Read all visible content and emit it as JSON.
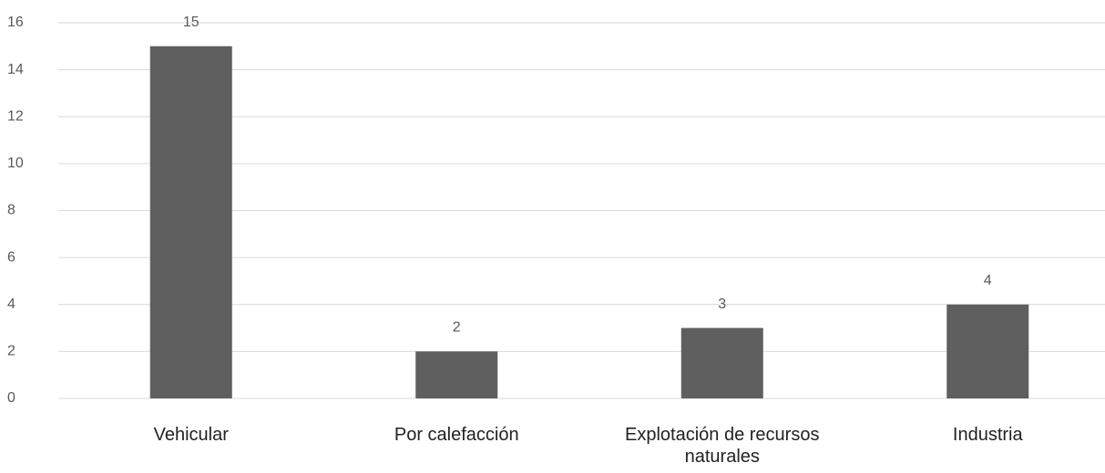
{
  "chart_data": {
    "type": "bar",
    "categories": [
      "Vehicular",
      "Por calefacción",
      "Explotación de recursos naturales",
      "Industria"
    ],
    "values": [
      15,
      2,
      3,
      4
    ],
    "color": "#5f5f5f",
    "ylim": [
      0,
      16
    ],
    "yticks": [
      0,
      2,
      4,
      6,
      8,
      10,
      12,
      14,
      16
    ],
    "grid": true
  }
}
